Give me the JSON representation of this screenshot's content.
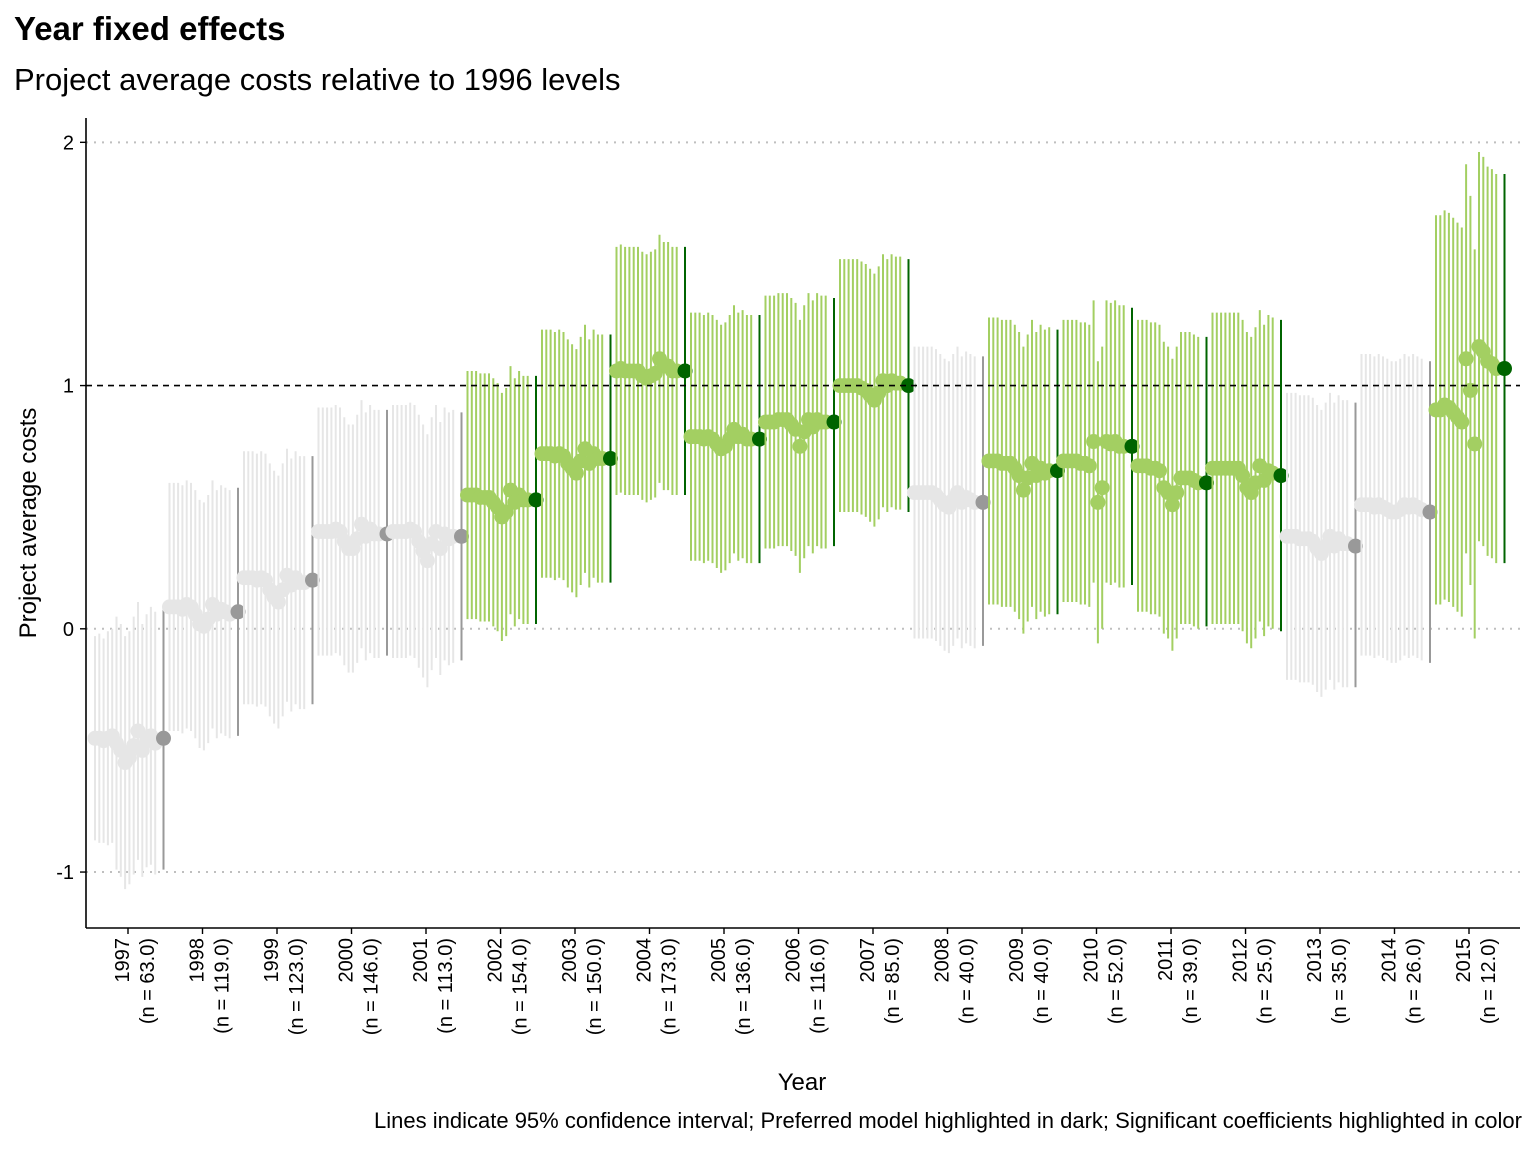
{
  "chart_data": {
    "type": "scatter",
    "title": "Year fixed effects",
    "subtitle": "Project average costs relative to 1996 levels",
    "xlabel": "Year",
    "ylabel": "Project average costs",
    "caption": "Lines indicate 95% confidence interval; Preferred model highlighted in dark; Significant coefficients highlighted in color",
    "ylim": [
      -1.23,
      2.1
    ],
    "yticks": [
      -1,
      0,
      1,
      2
    ],
    "reference_line": 1,
    "gridlines": "horizontal dotted",
    "categories": [
      {
        "year": "1997",
        "n": "(n = 63.0)"
      },
      {
        "year": "1998",
        "n": "(n = 119.0)"
      },
      {
        "year": "1999",
        "n": "(n = 123.0)"
      },
      {
        "year": "2000",
        "n": "(n = 146.0)"
      },
      {
        "year": "2001",
        "n": "(n = 113.0)"
      },
      {
        "year": "2002",
        "n": "(n = 154.0)"
      },
      {
        "year": "2003",
        "n": "(n = 150.0)"
      },
      {
        "year": "2004",
        "n": "(n = 173.0)"
      },
      {
        "year": "2005",
        "n": "(n = 136.0)"
      },
      {
        "year": "2006",
        "n": "(n = 116.0)"
      },
      {
        "year": "2007",
        "n": "(n = 85.0)"
      },
      {
        "year": "2008",
        "n": "(n = 40.0)"
      },
      {
        "year": "2009",
        "n": "(n = 40.0)"
      },
      {
        "year": "2010",
        "n": "(n = 52.0)"
      },
      {
        "year": "2011",
        "n": "(n = 39.0)"
      },
      {
        "year": "2012",
        "n": "(n = 25.0)"
      },
      {
        "year": "2013",
        "n": "(n = 35.0)"
      },
      {
        "year": "2014",
        "n": "(n = 26.0)"
      },
      {
        "year": "2015",
        "n": "(n = 12.0)"
      }
    ],
    "colors": {
      "nonsig_model": "#e6e6e6",
      "nonsig_preferred": "#999999",
      "sig_model": "#a3cf62",
      "sig_preferred": "#006400",
      "reference_line": "#000000",
      "grid": "#bfbfbf"
    },
    "models_per_year": 15,
    "years": [
      {
        "sig": false,
        "pref": [
          -0.45,
          -0.99,
          0.08
        ],
        "est": [
          -0.45,
          -0.45,
          -0.46,
          -0.45,
          -0.44,
          -0.47,
          -0.5,
          -0.55,
          -0.53,
          -0.48,
          -0.42,
          -0.5,
          -0.46,
          -0.44,
          -0.47
        ],
        "ci": [
          0.42,
          0.43,
          0.42,
          0.44,
          0.44,
          0.52,
          0.52,
          0.52,
          0.52,
          0.53,
          0.53,
          0.52,
          0.52,
          0.53,
          0.54
        ]
      },
      {
        "sig": false,
        "pref": [
          0.07,
          -0.44,
          0.58
        ],
        "est": [
          0.09,
          0.09,
          0.09,
          0.08,
          0.1,
          0.09,
          0.06,
          0.02,
          0.01,
          0.04,
          0.1,
          0.06,
          0.08,
          0.07,
          0.06
        ],
        "ci": [
          0.51,
          0.51,
          0.51,
          0.51,
          0.51,
          0.51,
          0.51,
          0.51,
          0.51,
          0.51,
          0.51,
          0.51,
          0.51,
          0.51,
          0.51
        ]
      },
      {
        "sig": false,
        "pref": [
          0.2,
          -0.31,
          0.71
        ],
        "est": [
          0.21,
          0.21,
          0.21,
          0.2,
          0.21,
          0.2,
          0.16,
          0.13,
          0.11,
          0.16,
          0.22,
          0.18,
          0.21,
          0.19,
          0.19
        ],
        "ci": [
          0.52,
          0.52,
          0.52,
          0.52,
          0.52,
          0.52,
          0.52,
          0.52,
          0.52,
          0.52,
          0.52,
          0.52,
          0.52,
          0.52,
          0.52
        ]
      },
      {
        "sig": false,
        "pref": [
          0.39,
          -0.11,
          0.9
        ],
        "est": [
          0.4,
          0.4,
          0.4,
          0.4,
          0.41,
          0.4,
          0.36,
          0.33,
          0.33,
          0.37,
          0.43,
          0.38,
          0.41,
          0.39,
          0.39
        ],
        "ci": [
          0.51,
          0.51,
          0.51,
          0.51,
          0.51,
          0.51,
          0.51,
          0.51,
          0.51,
          0.51,
          0.51,
          0.51,
          0.51,
          0.51,
          0.51
        ]
      },
      {
        "sig": false,
        "pref": [
          0.38,
          -0.13,
          0.89
        ],
        "est": [
          0.4,
          0.4,
          0.4,
          0.4,
          0.41,
          0.4,
          0.36,
          0.32,
          0.28,
          0.35,
          0.4,
          0.33,
          0.39,
          0.37,
          0.38
        ],
        "ci": [
          0.52,
          0.52,
          0.52,
          0.52,
          0.52,
          0.52,
          0.52,
          0.52,
          0.52,
          0.52,
          0.52,
          0.52,
          0.52,
          0.52,
          0.52
        ]
      },
      {
        "sig": true,
        "pref": [
          0.53,
          0.02,
          1.04
        ],
        "est": [
          0.55,
          0.55,
          0.55,
          0.54,
          0.54,
          0.54,
          0.52,
          0.5,
          0.46,
          0.48,
          0.57,
          0.52,
          0.55,
          0.53,
          0.53
        ],
        "ci": [
          0.51,
          0.51,
          0.51,
          0.51,
          0.51,
          0.51,
          0.51,
          0.51,
          0.51,
          0.51,
          0.51,
          0.51,
          0.51,
          0.51,
          0.51
        ]
      },
      {
        "sig": true,
        "pref": [
          0.7,
          0.19,
          1.21
        ],
        "est": [
          0.72,
          0.72,
          0.72,
          0.71,
          0.72,
          0.71,
          0.68,
          0.66,
          0.64,
          0.69,
          0.74,
          0.68,
          0.72,
          0.7,
          0.7
        ],
        "ci": [
          0.51,
          0.51,
          0.51,
          0.51,
          0.51,
          0.51,
          0.51,
          0.51,
          0.51,
          0.51,
          0.51,
          0.51,
          0.51,
          0.51,
          0.51
        ]
      },
      {
        "sig": true,
        "pref": [
          1.06,
          0.55,
          1.57
        ],
        "est": [
          1.06,
          1.07,
          1.06,
          1.06,
          1.06,
          1.06,
          1.04,
          1.03,
          1.04,
          1.05,
          1.11,
          1.08,
          1.08,
          1.06,
          1.06
        ],
        "ci": [
          0.51,
          0.51,
          0.51,
          0.51,
          0.51,
          0.51,
          0.51,
          0.51,
          0.51,
          0.51,
          0.51,
          0.51,
          0.51,
          0.51,
          0.51
        ]
      },
      {
        "sig": true,
        "pref": [
          0.78,
          0.27,
          1.29
        ],
        "est": [
          0.79,
          0.79,
          0.79,
          0.78,
          0.79,
          0.78,
          0.76,
          0.74,
          0.75,
          0.78,
          0.82,
          0.79,
          0.8,
          0.78,
          0.78
        ],
        "ci": [
          0.51,
          0.51,
          0.51,
          0.51,
          0.51,
          0.51,
          0.51,
          0.51,
          0.51,
          0.51,
          0.51,
          0.51,
          0.51,
          0.51,
          0.51
        ]
      },
      {
        "sig": true,
        "pref": [
          0.85,
          0.34,
          1.36
        ],
        "est": [
          0.85,
          0.85,
          0.85,
          0.86,
          0.86,
          0.86,
          0.84,
          0.82,
          0.75,
          0.81,
          0.86,
          0.83,
          0.86,
          0.85,
          0.85
        ],
        "ci": [
          0.52,
          0.52,
          0.52,
          0.52,
          0.52,
          0.52,
          0.52,
          0.52,
          0.52,
          0.52,
          0.52,
          0.52,
          0.52,
          0.52,
          0.52
        ]
      },
      {
        "sig": true,
        "pref": [
          1.0,
          0.48,
          1.52
        ],
        "est": [
          1.0,
          1.0,
          1.0,
          1.0,
          1.0,
          0.99,
          0.98,
          0.96,
          0.94,
          0.97,
          1.02,
          1.0,
          1.02,
          1.01,
          1.01
        ],
        "ci": [
          0.52,
          0.52,
          0.52,
          0.52,
          0.52,
          0.52,
          0.52,
          0.52,
          0.52,
          0.52,
          0.52,
          0.52,
          0.52,
          0.52,
          0.52
        ]
      },
      {
        "sig": false,
        "pref": [
          0.52,
          -0.07,
          1.12
        ],
        "est": [
          0.56,
          0.56,
          0.56,
          0.56,
          0.56,
          0.55,
          0.53,
          0.51,
          0.5,
          0.53,
          0.56,
          0.52,
          0.54,
          0.53,
          0.52
        ],
        "ci": [
          0.6,
          0.6,
          0.6,
          0.6,
          0.6,
          0.6,
          0.6,
          0.6,
          0.6,
          0.6,
          0.6,
          0.6,
          0.6,
          0.6,
          0.6
        ]
      },
      {
        "sig": true,
        "pref": [
          0.65,
          0.06,
          1.23
        ],
        "est": [
          0.69,
          0.69,
          0.69,
          0.68,
          0.68,
          0.68,
          0.66,
          0.63,
          0.57,
          0.62,
          0.68,
          0.63,
          0.66,
          0.64,
          0.65
        ],
        "ci": [
          0.59,
          0.59,
          0.59,
          0.59,
          0.59,
          0.59,
          0.59,
          0.59,
          0.59,
          0.59,
          0.59,
          0.59,
          0.59,
          0.59,
          0.59
        ]
      },
      {
        "sig": true,
        "pref": [
          0.75,
          0.18,
          1.32
        ],
        "est": [
          0.69,
          0.69,
          0.69,
          0.69,
          0.68,
          0.68,
          0.67,
          0.77,
          0.52,
          0.58,
          0.77,
          0.76,
          0.77,
          0.75,
          0.75
        ],
        "ci": [
          0.58,
          0.58,
          0.58,
          0.58,
          0.58,
          0.58,
          0.58,
          0.58,
          0.58,
          0.58,
          0.58,
          0.58,
          0.58,
          0.58,
          0.58
        ]
      },
      {
        "sig": true,
        "pref": [
          0.6,
          0.01,
          1.2
        ],
        "est": [
          0.67,
          0.67,
          0.67,
          0.66,
          0.66,
          0.65,
          0.58,
          0.56,
          0.51,
          0.56,
          0.62,
          0.62,
          0.62,
          0.61,
          0.6
        ],
        "ci": [
          0.6,
          0.6,
          0.6,
          0.6,
          0.6,
          0.6,
          0.6,
          0.6,
          0.6,
          0.6,
          0.6,
          0.6,
          0.6,
          0.6,
          0.6
        ]
      },
      {
        "sig": true,
        "pref": [
          0.63,
          -0.01,
          1.27
        ],
        "est": [
          0.66,
          0.66,
          0.66,
          0.66,
          0.66,
          0.66,
          0.66,
          0.63,
          0.58,
          0.56,
          0.6,
          0.67,
          0.61,
          0.65,
          0.64
        ],
        "ci": [
          0.64,
          0.64,
          0.64,
          0.64,
          0.64,
          0.64,
          0.64,
          0.64,
          0.64,
          0.64,
          0.64,
          0.64,
          0.64,
          0.64,
          0.64
        ]
      },
      {
        "sig": false,
        "pref": [
          0.34,
          -0.24,
          0.93
        ],
        "est": [
          0.38,
          0.38,
          0.38,
          0.37,
          0.37,
          0.37,
          0.36,
          0.33,
          0.31,
          0.34,
          0.38,
          0.34,
          0.37,
          0.35,
          0.35
        ],
        "ci": [
          0.59,
          0.59,
          0.59,
          0.59,
          0.59,
          0.59,
          0.59,
          0.59,
          0.59,
          0.59,
          0.59,
          0.59,
          0.59,
          0.59,
          0.59
        ]
      },
      {
        "sig": false,
        "pref": [
          0.48,
          -0.14,
          1.1
        ],
        "est": [
          0.51,
          0.51,
          0.51,
          0.5,
          0.51,
          0.5,
          0.49,
          0.48,
          0.48,
          0.49,
          0.51,
          0.5,
          0.51,
          0.5,
          0.49
        ],
        "ci": [
          0.62,
          0.62,
          0.62,
          0.62,
          0.62,
          0.62,
          0.62,
          0.62,
          0.62,
          0.62,
          0.62,
          0.62,
          0.62,
          0.62,
          0.62
        ]
      },
      {
        "sig": true,
        "pref": [
          1.07,
          0.27,
          1.87
        ],
        "est": [
          0.9,
          0.9,
          0.92,
          0.91,
          0.89,
          0.87,
          0.85,
          1.11,
          0.98,
          0.76,
          1.16,
          1.14,
          1.1,
          1.09,
          1.07
        ],
        "ci": [
          0.8,
          0.8,
          0.8,
          0.8,
          0.8,
          0.8,
          0.8,
          0.8,
          0.8,
          0.8,
          0.8,
          0.8,
          0.8,
          0.8,
          0.8
        ]
      }
    ]
  }
}
